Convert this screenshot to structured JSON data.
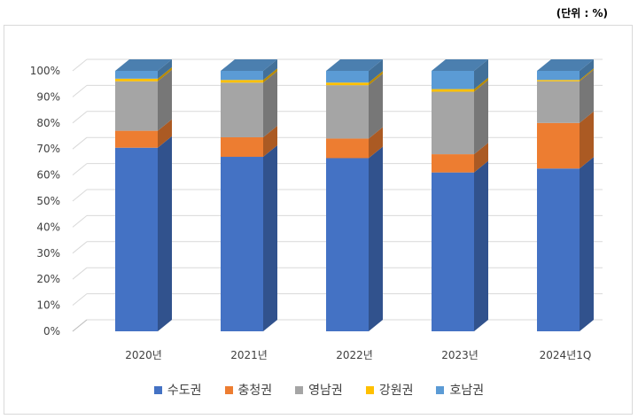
{
  "unit_label": "(단위 : %)",
  "chart_data": {
    "type": "bar",
    "stacked": true,
    "three_d": true,
    "categories": [
      "2020년",
      "2021년",
      "2022년",
      "2023년",
      "2024년1Q"
    ],
    "ylim": [
      0,
      100
    ],
    "ytick_labels": [
      "0%",
      "10%",
      "20%",
      "30%",
      "40%",
      "50%",
      "60%",
      "70%",
      "80%",
      "90%",
      "100%"
    ],
    "grid": true,
    "legend_position": "bottom",
    "series": [
      {
        "name": "수도권",
        "color": "#4472C4",
        "values": [
          70.5,
          67,
          66.5,
          61,
          62.5
        ]
      },
      {
        "name": "충청권",
        "color": "#ED7D31",
        "values": [
          6.5,
          7.5,
          7.5,
          7,
          17.5
        ]
      },
      {
        "name": "영남권",
        "color": "#A5A5A5",
        "values": [
          19,
          21,
          20.5,
          24,
          16
        ]
      },
      {
        "name": "강원권",
        "color": "#FFC000",
        "values": [
          1,
          1,
          1,
          1,
          0.5
        ]
      },
      {
        "name": "호남권",
        "color": "#5B9BD5",
        "values": [
          3,
          3.5,
          4.5,
          7,
          3.5
        ]
      }
    ]
  }
}
